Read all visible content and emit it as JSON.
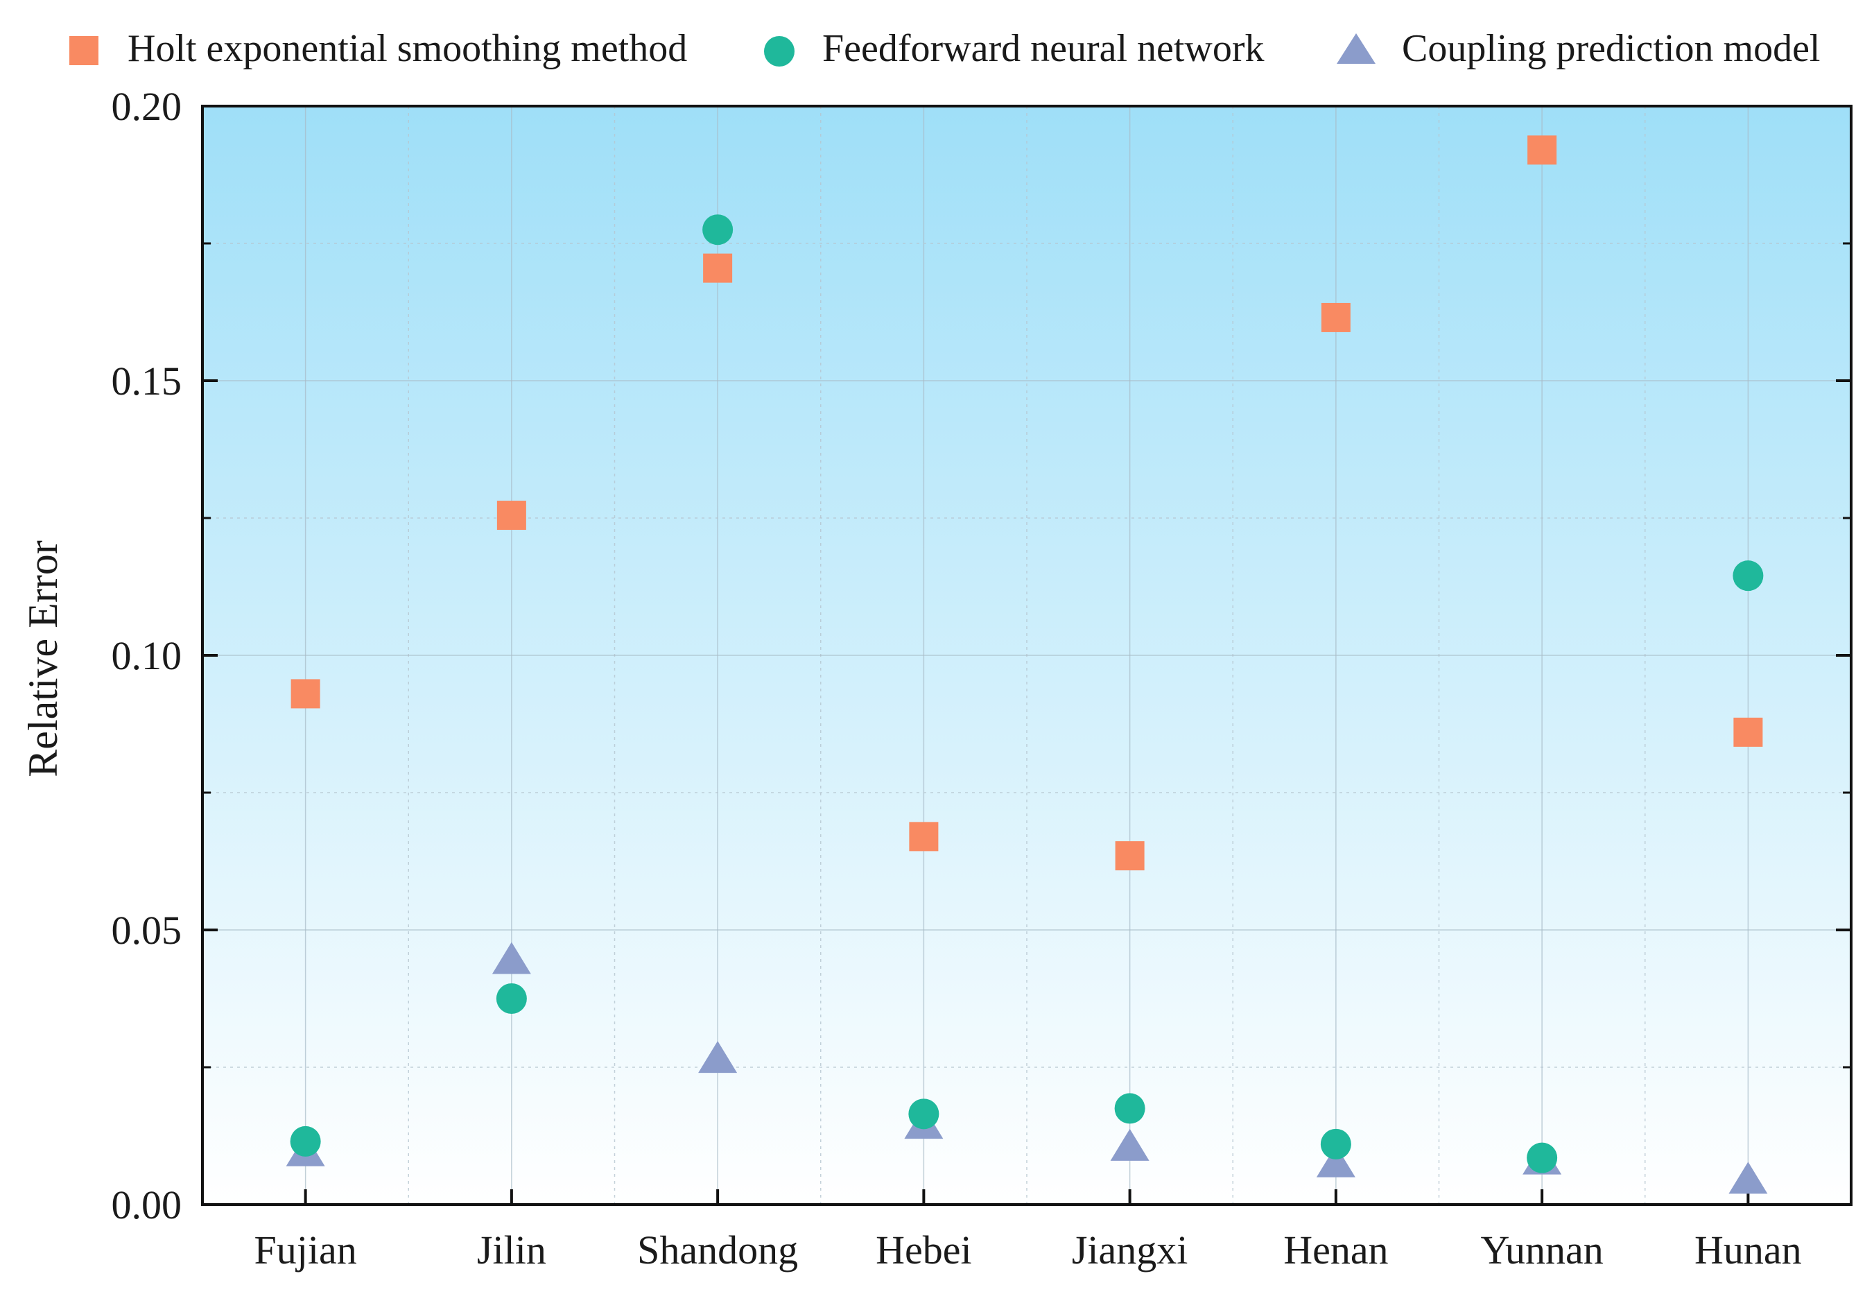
{
  "chart_data": {
    "type": "scatter",
    "title": "",
    "xlabel": "",
    "ylabel": "Relative Error",
    "ylim": [
      0,
      0.2
    ],
    "yticks": [
      "0.00",
      "0.05",
      "0.10",
      "0.15",
      "0.20"
    ],
    "categories": [
      "Fujian",
      "Jilin",
      "Shandong",
      "Hebei",
      "Jiangxi",
      "Henan",
      "Yunnan",
      "Hunan"
    ],
    "legend_position": "top",
    "background_gradient": [
      "#9fdff8",
      "#ffffff"
    ],
    "series": [
      {
        "name": "Holt exponential smoothing method",
        "marker": "square",
        "color": "#f98a62",
        "values": [
          0.093,
          0.1255,
          0.1705,
          0.067,
          0.0635,
          0.1615,
          0.192,
          0.086
        ]
      },
      {
        "name": "Feedforward neural network",
        "marker": "circle",
        "color": "#1fb89b",
        "values": [
          0.0115,
          0.0375,
          0.1775,
          0.0165,
          0.0175,
          0.011,
          0.0085,
          0.1145
        ]
      },
      {
        "name": "Coupling prediction model",
        "marker": "triangle",
        "color": "#8b9ccb",
        "values": [
          0.0095,
          0.0445,
          0.0265,
          0.0145,
          0.0105,
          0.0075,
          0.008,
          0.0045
        ]
      }
    ]
  }
}
